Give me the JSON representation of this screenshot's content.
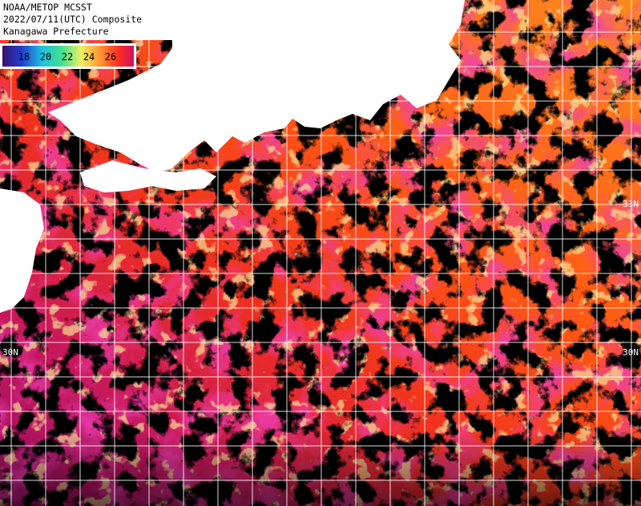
{
  "header": {
    "lines": [
      "NOAA/METOP MCSST",
      "2022/07/11(UTC) Composite",
      "Kanagawa Prefecture"
    ]
  },
  "colorbar": {
    "labels": [
      "18",
      "20",
      "22",
      "24",
      "26"
    ]
  },
  "grid_labels": [
    "33N",
    "30N",
    "30N"
  ]
}
